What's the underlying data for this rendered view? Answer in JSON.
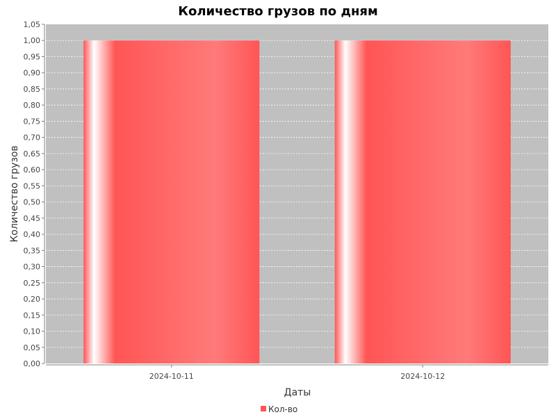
{
  "chart_data": {
    "type": "bar",
    "title": "Количество грузов по дням",
    "xlabel": "Даты",
    "ylabel": "Количество грузов",
    "categories": [
      "2024-10-11",
      "2024-10-12"
    ],
    "series": [
      {
        "name": "Кол-во",
        "values": [
          1.0,
          1.0
        ],
        "color": "#ff5555"
      }
    ],
    "ylim": [
      0,
      1.05
    ],
    "yticks": [
      "0,00",
      "0,05",
      "0,10",
      "0,15",
      "0,20",
      "0,25",
      "0,30",
      "0,35",
      "0,40",
      "0,45",
      "0,50",
      "0,55",
      "0,60",
      "0,65",
      "0,70",
      "0,75",
      "0,80",
      "0,85",
      "0,90",
      "0,95",
      "1,00",
      "1,05"
    ],
    "grid": true,
    "legend_position": "bottom",
    "plot_background": "#c0c0c0"
  }
}
